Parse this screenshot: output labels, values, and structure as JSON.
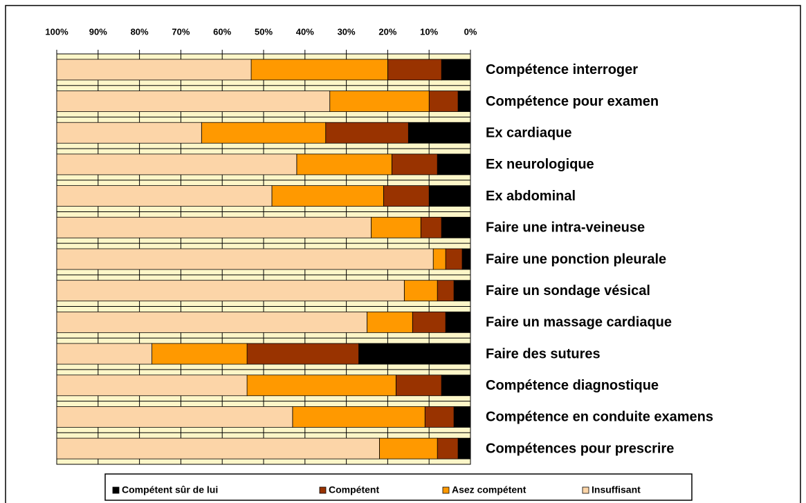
{
  "chart_data": {
    "type": "stacked_barh",
    "categories": [
      "Compétence interroger",
      "Compétence pour examen",
      "Ex cardiaque",
      "Ex neurologique",
      "Ex abdominal",
      "Faire une intra-veineuse",
      "Faire une ponction pleurale",
      "Faire un sondage vésical",
      "Faire un massage cardiaque",
      "Faire des sutures",
      "Compétence diagnostique",
      "Compétence en conduite examens",
      "Compétences pour prescrire"
    ],
    "series": [
      {
        "name": "Compétent sûr de lui",
        "color": "#000000",
        "values": [
          7,
          3,
          15,
          8,
          10,
          7,
          2,
          4,
          6,
          27,
          7,
          4,
          3
        ]
      },
      {
        "name": "Compétent",
        "color": "#993300",
        "values": [
          13,
          7,
          20,
          11,
          11,
          5,
          4,
          4,
          8,
          27,
          11,
          7,
          5
        ]
      },
      {
        "name": "Asez compétent",
        "color": "#ff9900",
        "values": [
          33,
          24,
          30,
          23,
          27,
          12,
          3,
          8,
          11,
          23,
          36,
          32,
          14
        ]
      },
      {
        "name": "Insuffisant",
        "color": "#fcd5a8",
        "values": [
          47,
          66,
          35,
          58,
          52,
          76,
          91,
          84,
          75,
          23,
          46,
          57,
          78
        ]
      }
    ],
    "xlim": [
      100,
      0
    ],
    "xticks": [
      {
        "value": 100,
        "label": "100%"
      },
      {
        "value": 90,
        "label": "90%"
      },
      {
        "value": 80,
        "label": "80%"
      },
      {
        "value": 70,
        "label": "70%"
      },
      {
        "value": 60,
        "label": "60%"
      },
      {
        "value": 50,
        "label": "50%"
      },
      {
        "value": 40,
        "label": "40%"
      },
      {
        "value": 30,
        "label": "30%"
      },
      {
        "value": 20,
        "label": "20%"
      },
      {
        "value": 10,
        "label": "10%"
      },
      {
        "value": 0,
        "label": "0%"
      }
    ],
    "grid": true,
    "legend": "bottom"
  }
}
